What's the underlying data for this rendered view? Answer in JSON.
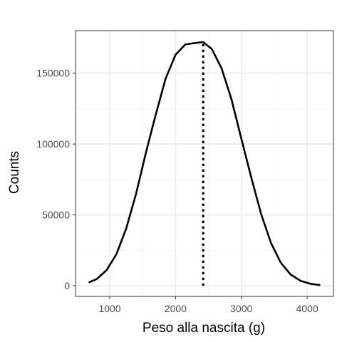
{
  "chart_data": {
    "type": "line",
    "title": "",
    "xlabel": "Peso alla nascita (g)",
    "ylabel": "Counts",
    "xlim": [
      480,
      4400
    ],
    "ylim": [
      -7500,
      180000
    ],
    "x_ticks": [
      1000,
      2000,
      3000,
      4000
    ],
    "x_tick_labels": [
      "1000",
      "2000",
      "3000",
      "4000"
    ],
    "x_minor_ticks": [
      1500,
      2500,
      3500
    ],
    "y_ticks": [
      0,
      50000,
      100000,
      150000
    ],
    "y_tick_labels": [
      "0",
      "50000",
      "100000",
      "150000"
    ],
    "y_minor_ticks": [
      25000,
      75000,
      125000
    ],
    "grid": true,
    "legend": "none",
    "series": [
      {
        "x": [
          680,
          800,
          950,
          1100,
          1250,
          1400,
          1550,
          1700,
          1850,
          2000,
          2150,
          2300,
          2420,
          2550,
          2700,
          2850,
          3000,
          3150,
          3300,
          3450,
          3600,
          3750,
          3900,
          4050,
          4200
        ],
        "values": [
          2300,
          4700,
          10900,
          22200,
          40300,
          65000,
          93900,
          121000,
          146200,
          163000,
          170300,
          171300,
          171900,
          167100,
          153400,
          131500,
          103800,
          76500,
          50800,
          30200,
          16300,
          7900,
          3500,
          1400,
          500
        ]
      }
    ],
    "vline": {
      "x": 2420,
      "y": [
        0,
        171900
      ]
    },
    "colors": {
      "line": "#000000",
      "grid_major": "#ebebeb",
      "grid_minor": "#f3f3f3",
      "panel_border": "#333333",
      "tick_text": "#4d4d4d"
    }
  }
}
